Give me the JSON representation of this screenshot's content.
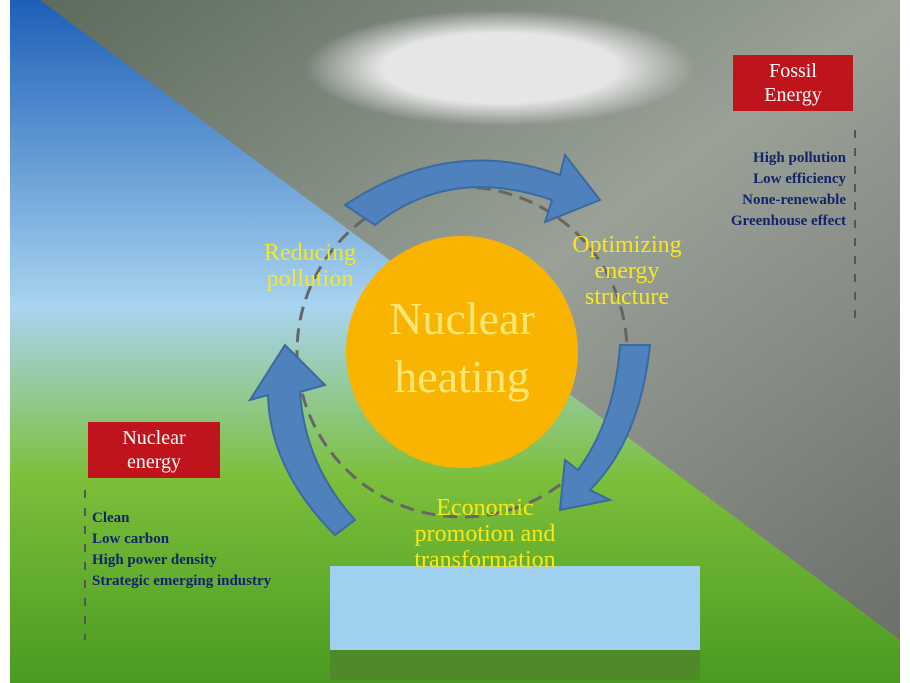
{
  "fossil": {
    "label": "Fossil Energy",
    "items": [
      "High pollution",
      "Low efficiency",
      "None-renewable",
      "Greenhouse effect"
    ]
  },
  "nuclear": {
    "label": "Nuclear energy",
    "items": [
      "Clean",
      "Low carbon",
      "High power density",
      "Strategic emerging industry"
    ]
  },
  "center": "Nuclear heating",
  "cycle": [
    "Reducing pollution",
    "Optimizing energy structure",
    "Economic promotion and transformation"
  ]
}
